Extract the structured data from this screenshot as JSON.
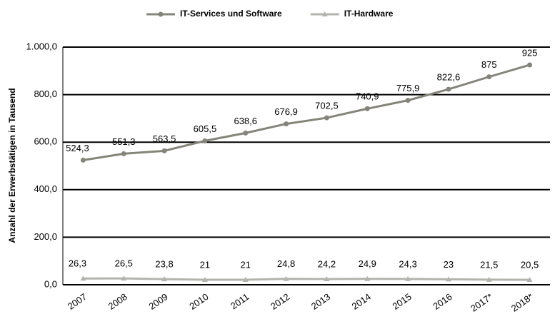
{
  "chart_data": {
    "type": "line",
    "y_label": "Anzahl der Erwerbstätigen in Tausend",
    "categories": [
      "2007",
      "2008",
      "2009",
      "2010",
      "2011",
      "2012",
      "2013",
      "2014",
      "2015",
      "2016",
      "2017*",
      "2018*"
    ],
    "series": [
      {
        "name": "IT-Services und Software",
        "color": "#858479",
        "marker": "circle",
        "values": [
          524.3,
          551.3,
          563.5,
          605.5,
          638.6,
          676.9,
          702.5,
          740.9,
          775.9,
          822.6,
          875,
          925
        ],
        "value_labels": [
          "524,3",
          "551,3",
          "563,5",
          "605,5",
          "638,6",
          "676,9",
          "702,5",
          "740,9",
          "775,9",
          "822,6",
          "875",
          "925"
        ]
      },
      {
        "name": "IT-Hardware",
        "color": "#b3b3ae",
        "marker": "triangle",
        "values": [
          26.3,
          26.5,
          23.8,
          21,
          21,
          24.8,
          24.2,
          24.9,
          24.3,
          23,
          21.5,
          20.5
        ],
        "value_labels": [
          "26,3",
          "26,5",
          "23,8",
          "21",
          "21",
          "24,8",
          "24,2",
          "24,9",
          "24,3",
          "23",
          "21,5",
          "20,5"
        ]
      }
    ],
    "ylim": [
      0,
      1000
    ],
    "yticks": [
      {
        "value": 0,
        "label": "0,0"
      },
      {
        "value": 200,
        "label": "200,0"
      },
      {
        "value": 400,
        "label": "400,0"
      },
      {
        "value": 600,
        "label": "600,0"
      },
      {
        "value": 800,
        "label": "800,0"
      },
      {
        "value": 1000,
        "label": "1.000,0"
      }
    ],
    "grid": true,
    "legend": "top"
  }
}
